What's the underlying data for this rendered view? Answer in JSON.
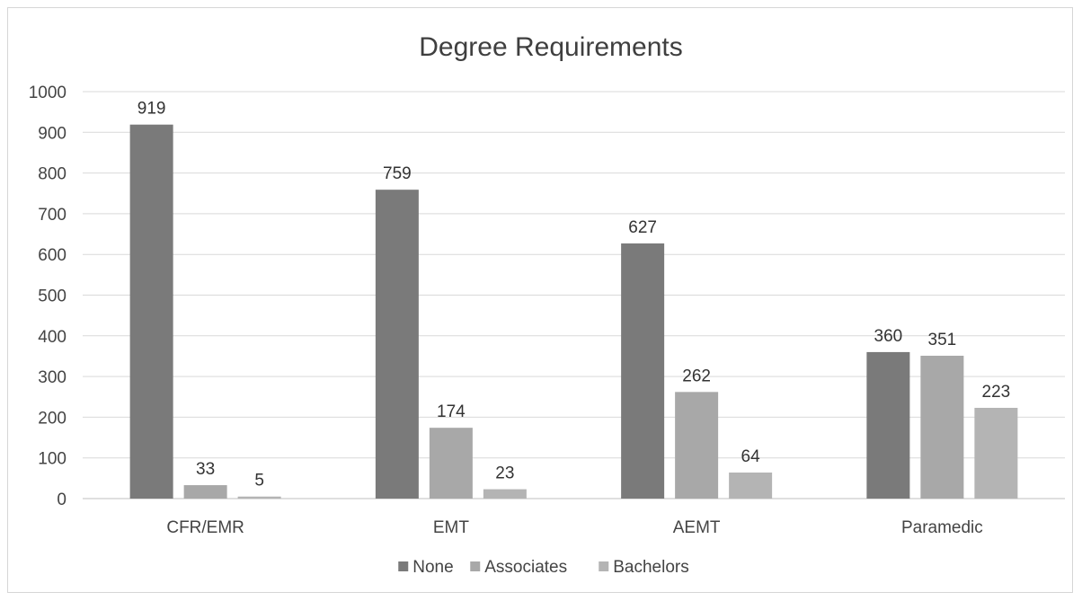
{
  "chart_data": {
    "type": "bar",
    "title": "Degree Requirements",
    "categories": [
      "CFR/EMR",
      "EMT",
      "AEMT",
      "Paramedic"
    ],
    "series": [
      {
        "name": "None",
        "values": [
          919,
          759,
          627,
          360
        ],
        "color": "#7a7a7a"
      },
      {
        "name": "Associates",
        "values": [
          33,
          174,
          262,
          351
        ],
        "color": "#a8a8a8"
      },
      {
        "name": "Bachelors",
        "values": [
          5,
          23,
          64,
          223
        ],
        "color": "#b4b4b4"
      }
    ],
    "ylim": [
      0,
      1000
    ],
    "yticks": [
      0,
      100,
      200,
      300,
      400,
      500,
      600,
      700,
      800,
      900,
      1000
    ],
    "xlabel": "",
    "ylabel": "",
    "grid": true,
    "legend_position": "bottom",
    "data_labels": true
  }
}
